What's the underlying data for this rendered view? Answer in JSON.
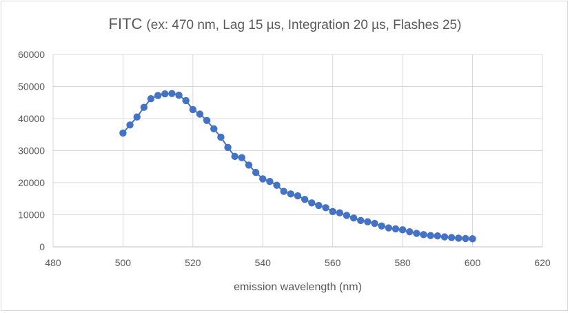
{
  "chart_data": {
    "type": "scatter",
    "title": "FITC",
    "subtitle": "(ex: 470 nm, Lag 15 µs, Integration 20 µs, Flashes 25)",
    "xlabel": "emission wavelength (nm)",
    "ylabel": "",
    "xlim": [
      480,
      620
    ],
    "ylim": [
      0,
      60000
    ],
    "x_ticks": [
      480,
      500,
      520,
      540,
      560,
      580,
      600,
      620
    ],
    "y_ticks": [
      0,
      10000,
      20000,
      30000,
      40000,
      50000,
      60000
    ],
    "x_tick_labels": [
      "480",
      "500",
      "520",
      "540",
      "560",
      "580",
      "600",
      "620"
    ],
    "y_tick_labels": [
      "0",
      "10000",
      "20000",
      "30000",
      "40000",
      "50000",
      "60000"
    ],
    "grid": "vertical and horizontal",
    "legend": "none",
    "marker_color": "#4472C4",
    "line_color": "#4472C4",
    "series": [
      {
        "x": [
          500,
          502,
          504,
          506,
          508,
          510,
          512,
          514,
          516,
          518,
          520,
          522,
          524,
          526,
          528,
          530,
          532,
          534,
          536,
          538,
          540,
          542,
          544,
          546,
          548,
          550,
          552,
          554,
          556,
          558,
          560,
          562,
          564,
          566,
          568,
          570,
          572,
          574,
          576,
          578,
          580,
          582,
          584,
          586,
          588,
          590,
          592,
          594,
          596,
          598,
          600
        ],
        "y": [
          35500,
          38000,
          40500,
          43500,
          46200,
          47200,
          47700,
          47800,
          47300,
          45600,
          42800,
          41400,
          39400,
          36800,
          34200,
          31000,
          28200,
          27800,
          25500,
          23200,
          21200,
          20400,
          19200,
          17300,
          16500,
          15900,
          14800,
          13700,
          12900,
          12200,
          11000,
          10600,
          9800,
          9000,
          8200,
          7800,
          7300,
          6500,
          5900,
          5600,
          5300,
          4700,
          4200,
          3800,
          3500,
          3400,
          3100,
          2900,
          2700,
          2600,
          2500
        ]
      }
    ]
  }
}
